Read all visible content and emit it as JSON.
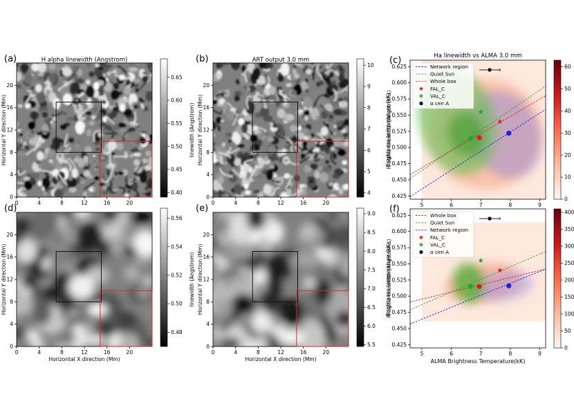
{
  "figure": {
    "panels": [
      {
        "letter": "(a)",
        "title": "H alpha linewidth (Angstrom)"
      },
      {
        "letter": "(b)",
        "title": "ART output 3.0 mm"
      },
      {
        "letter": "(c)",
        "title": "Ha linewidth vs ALMA 3.0 mm"
      },
      {
        "letter": "(d)",
        "title": ""
      },
      {
        "letter": "(e)",
        "title": ""
      },
      {
        "letter": "(f)",
        "title": ""
      }
    ]
  },
  "colors": {
    "network": "#1f1fd6",
    "quiet_sun": "#2ca02c",
    "whole_box": "#e41a1c",
    "fal": "#e41a1c",
    "val": "#2ca02c",
    "alpha_cen": "#000000",
    "black_box": "#111111",
    "red_box": "#d62728"
  },
  "chart_data": [
    {
      "id": "a",
      "type": "heatmap",
      "colormap": "gray",
      "title": "H alpha linewidth (Angstrom)",
      "xlabel": "",
      "ylabel": "Horizontal Y direction (Mm)",
      "xticks": [
        "0",
        "4",
        "8",
        "12",
        "16",
        "20"
      ],
      "yticks": [
        "0",
        "4",
        "8",
        "12",
        "16",
        "20"
      ],
      "xlim": [
        0,
        24
      ],
      "ylim": [
        0,
        24
      ],
      "colorbar": {
        "label": "linewidth (Angstrom)",
        "range": [
          0.39,
          0.69
        ],
        "ticks": [
          "0.40",
          "0.45",
          "0.50",
          "0.55",
          "0.60",
          "0.65"
        ]
      },
      "boxes": [
        {
          "color": "black",
          "x": [
            7,
            15
          ],
          "y": [
            8,
            17
          ]
        },
        {
          "color": "red",
          "x": [
            14.8,
            24
          ],
          "y": [
            0,
            10
          ]
        }
      ]
    },
    {
      "id": "b",
      "type": "heatmap",
      "colormap": "gray",
      "title": "ART output 3.0 mm",
      "xlabel": "",
      "ylabel": "Horizontal Y direction (Mm)",
      "xticks": [
        "0",
        "4",
        "8",
        "12",
        "16",
        "20"
      ],
      "yticks": [
        "0",
        "4",
        "8",
        "12",
        "16",
        "20"
      ],
      "xlim": [
        0,
        24
      ],
      "ylim": [
        0,
        24
      ],
      "colorbar": {
        "label": "Brightness temperature (kK)",
        "range": [
          3.8,
          10.3
        ],
        "ticks": [
          "4",
          "5",
          "6",
          "7",
          "8",
          "9",
          "10"
        ]
      },
      "boxes": [
        {
          "color": "black",
          "x": [
            7,
            15
          ],
          "y": [
            8,
            17
          ]
        },
        {
          "color": "red",
          "x": [
            14.8,
            24
          ],
          "y": [
            0,
            10
          ]
        }
      ]
    },
    {
      "id": "c",
      "type": "scatter",
      "title": "Ha linewidth vs ALMA 3.0 mm",
      "xlabel": "",
      "ylabel": "H alpha linewidth (Angstroms)",
      "xlim": [
        4.6,
        9.2
      ],
      "ylim": [
        0.42,
        0.635
      ],
      "xticks": [
        "5",
        "6",
        "7",
        "8",
        "9"
      ],
      "yticks": [
        "0.425",
        "0.450",
        "0.475",
        "0.500",
        "0.525",
        "0.550",
        "0.575",
        "0.600",
        "0.625"
      ],
      "legend": {
        "position": "upper-left",
        "entries": [
          "Network region",
          "Quiet Sun",
          "Whole box",
          "FAL_C",
          "VAL_C",
          "α cen A"
        ]
      },
      "fit_lines": [
        {
          "name": "Network region",
          "x": [
            4.6,
            9.2
          ],
          "y": [
            0.424,
            0.559
          ]
        },
        {
          "name": "Quiet Sun",
          "x": [
            4.6,
            9.2
          ],
          "y": [
            0.452,
            0.595
          ]
        },
        {
          "name": "Whole box",
          "x": [
            4.6,
            9.2
          ],
          "y": [
            0.458,
            0.58
          ]
        }
      ],
      "points": [
        {
          "label": "Quiet Sun mean",
          "x": 6.65,
          "y": 0.514
        },
        {
          "label": "Whole box mean",
          "x": 6.95,
          "y": 0.515
        },
        {
          "label": "Network mean",
          "x": 7.95,
          "y": 0.522
        },
        {
          "label": "FAL_C",
          "x": 7.65,
          "y": 0.54
        },
        {
          "label": "VAL_C",
          "x": 7.0,
          "y": 0.555
        },
        {
          "label": "α cen A",
          "x": 7.3,
          "y": 0.62,
          "xerr": 0.35
        }
      ],
      "colorbar": {
        "range": [
          0,
          63
        ],
        "ticks": [
          "0",
          "10",
          "20",
          "30",
          "40",
          "50",
          "60"
        ]
      }
    },
    {
      "id": "d",
      "type": "heatmap",
      "colormap": "gray",
      "xlabel": "Horizontal X direction (Mm)",
      "ylabel": "Horizontal Y direction (Mm)",
      "xticks": [
        "0",
        "4",
        "8",
        "12",
        "16",
        "20"
      ],
      "yticks": [
        "0",
        "4",
        "8",
        "12",
        "16",
        "20"
      ],
      "xlim": [
        0,
        24
      ],
      "ylim": [
        0,
        24
      ],
      "colorbar": {
        "label": "linewidth (Angstrom)",
        "range": [
          0.47,
          0.567
        ],
        "ticks": [
          "0.48",
          "0.50",
          "0.52",
          "0.54",
          "0.56"
        ]
      },
      "boxes": [
        {
          "color": "black",
          "x": [
            7,
            15
          ],
          "y": [
            8,
            17
          ]
        },
        {
          "color": "red",
          "x": [
            14.8,
            24
          ],
          "y": [
            0,
            10
          ]
        }
      ]
    },
    {
      "id": "e",
      "type": "heatmap",
      "colormap": "gray",
      "xlabel": "Horizontal X direction (Mm)",
      "ylabel": "Horizontal Y direction (Mm)",
      "xticks": [
        "0",
        "4",
        "8",
        "12",
        "16",
        "20"
      ],
      "yticks": [
        "0",
        "4",
        "8",
        "12",
        "16",
        "20"
      ],
      "xlim": [
        0,
        24
      ],
      "ylim": [
        0,
        24
      ],
      "colorbar": {
        "label": "Brightness temperature (kK)",
        "range": [
          5.45,
          9.15
        ],
        "ticks": [
          "5.5",
          "6.0",
          "6.5",
          "7.0",
          "7.5",
          "8.0",
          "8.5",
          "9.0"
        ]
      },
      "boxes": [
        {
          "color": "black",
          "x": [
            7,
            15
          ],
          "y": [
            8,
            17
          ]
        },
        {
          "color": "red",
          "x": [
            14.8,
            24
          ],
          "y": [
            0,
            10
          ]
        }
      ]
    },
    {
      "id": "f",
      "type": "scatter",
      "xlabel": "ALMA Brightness Temperature(kK)",
      "ylabel": "H alpha linewidth (Angstroms)",
      "xlim": [
        4.6,
        9.2
      ],
      "ylim": [
        0.42,
        0.635
      ],
      "xticks": [
        "5",
        "6",
        "7",
        "8",
        "9"
      ],
      "yticks": [
        "0.425",
        "0.450",
        "0.475",
        "0.500",
        "0.525",
        "0.550",
        "0.575",
        "0.600",
        "0.625"
      ],
      "legend": {
        "position": "upper-left",
        "entries": [
          "Whole box",
          "Quiet Sun",
          "Network region",
          "FAL_C",
          "VAL_C",
          "α cen A"
        ]
      },
      "fit_lines": [
        {
          "name": "Whole box",
          "x": [
            4.6,
            9.2
          ],
          "y": [
            0.491,
            0.542
          ]
        },
        {
          "name": "Quiet Sun",
          "x": [
            4.6,
            9.2
          ],
          "y": [
            0.479,
            0.569
          ]
        },
        {
          "name": "Network region",
          "x": [
            4.6,
            9.2
          ],
          "y": [
            0.457,
            0.542
          ]
        }
      ],
      "points": [
        {
          "label": "Quiet Sun mean",
          "x": 6.65,
          "y": 0.515
        },
        {
          "label": "Whole box mean",
          "x": 6.95,
          "y": 0.515
        },
        {
          "label": "Network mean",
          "x": 7.95,
          "y": 0.516
        },
        {
          "label": "FAL_C",
          "x": 7.65,
          "y": 0.54
        },
        {
          "label": "VAL_C",
          "x": 7.0,
          "y": 0.555
        },
        {
          "label": "α cen A",
          "x": 7.3,
          "y": 0.62,
          "xerr": 0.35
        }
      ],
      "colorbar": {
        "range": [
          0,
          410
        ],
        "ticks": [
          "0",
          "50",
          "100",
          "150",
          "200",
          "250",
          "300",
          "350",
          "400"
        ]
      }
    }
  ]
}
